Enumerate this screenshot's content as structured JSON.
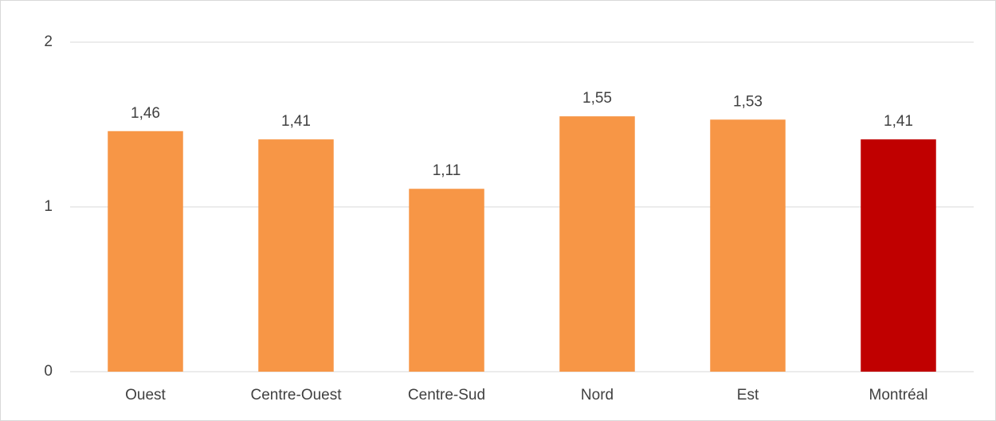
{
  "chart_data": {
    "type": "bar",
    "categories": [
      "Ouest",
      "Centre-Ouest",
      "Centre-Sud",
      "Nord",
      "Est",
      "Montréal"
    ],
    "values": [
      1.46,
      1.41,
      1.11,
      1.55,
      1.53,
      1.41
    ],
    "value_labels": [
      "1,46",
      "1,41",
      "1,11",
      "1,55",
      "1,53",
      "1,41"
    ],
    "colors": [
      "#f79646",
      "#f79646",
      "#f79646",
      "#f79646",
      "#f79646",
      "#c00000"
    ],
    "ylim": [
      0,
      2
    ],
    "yticks": [
      0,
      1,
      2
    ],
    "grid": true
  }
}
